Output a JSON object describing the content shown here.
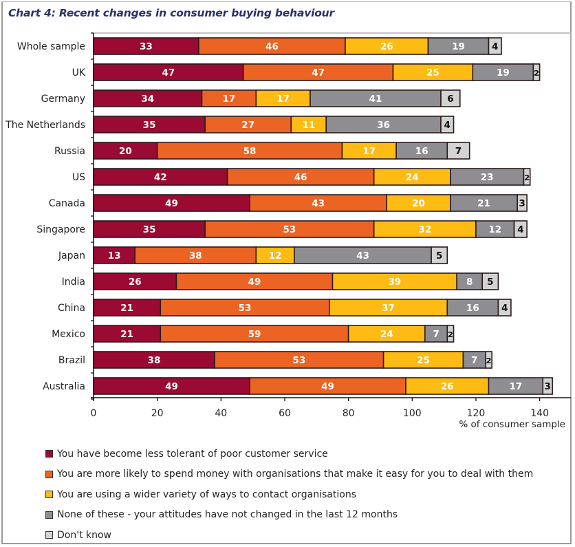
{
  "chart_data": {
    "type": "bar",
    "orientation": "horizontal",
    "stacked": true,
    "title": "Chart 4: Recent changes in consumer buying behaviour",
    "xlabel": "% of consumer sample",
    "ylabel": "",
    "xlim": [
      0,
      140
    ],
    "xticks": [
      0,
      20,
      40,
      60,
      80,
      100,
      120,
      140
    ],
    "grid": false,
    "legend_position": "bottom",
    "categories": [
      "Whole sample",
      "UK",
      "Germany",
      "The Netherlands",
      "Russia",
      "US",
      "Canada",
      "Singapore",
      "Japan",
      "India",
      "China",
      "Mexico",
      "Brazil",
      "Australia"
    ],
    "series": [
      {
        "name": "You have become less tolerant of poor customer service",
        "color": "#9b0a33",
        "label_color": "#ffffff",
        "values": [
          33,
          47,
          34,
          35,
          20,
          42,
          49,
          35,
          13,
          26,
          21,
          21,
          38,
          49
        ]
      },
      {
        "name": "You are more likely to spend money with organisations that make it easy for you to deal with them",
        "color": "#ec6424",
        "label_color": "#ffffff",
        "values": [
          46,
          47,
          17,
          27,
          58,
          46,
          43,
          53,
          38,
          49,
          53,
          59,
          53,
          49
        ]
      },
      {
        "name": "You are using a wider variety of ways to contact organisations",
        "color": "#fdbb14",
        "label_color": "#ffffff",
        "values": [
          26,
          25,
          17,
          11,
          17,
          24,
          20,
          32,
          12,
          39,
          37,
          24,
          25,
          26
        ]
      },
      {
        "name": "None of these - your attitudes have not changed in the last 12 months",
        "color": "#8e8e92",
        "label_color": "#ffffff",
        "values": [
          19,
          19,
          41,
          36,
          16,
          23,
          21,
          12,
          43,
          8,
          16,
          7,
          7,
          17
        ]
      },
      {
        "name": "Don't know",
        "color": "#d3d3d3",
        "label_color": "#111111",
        "values": [
          4,
          2,
          6,
          4,
          7,
          2,
          3,
          4,
          5,
          5,
          4,
          2,
          2,
          3
        ]
      }
    ]
  }
}
